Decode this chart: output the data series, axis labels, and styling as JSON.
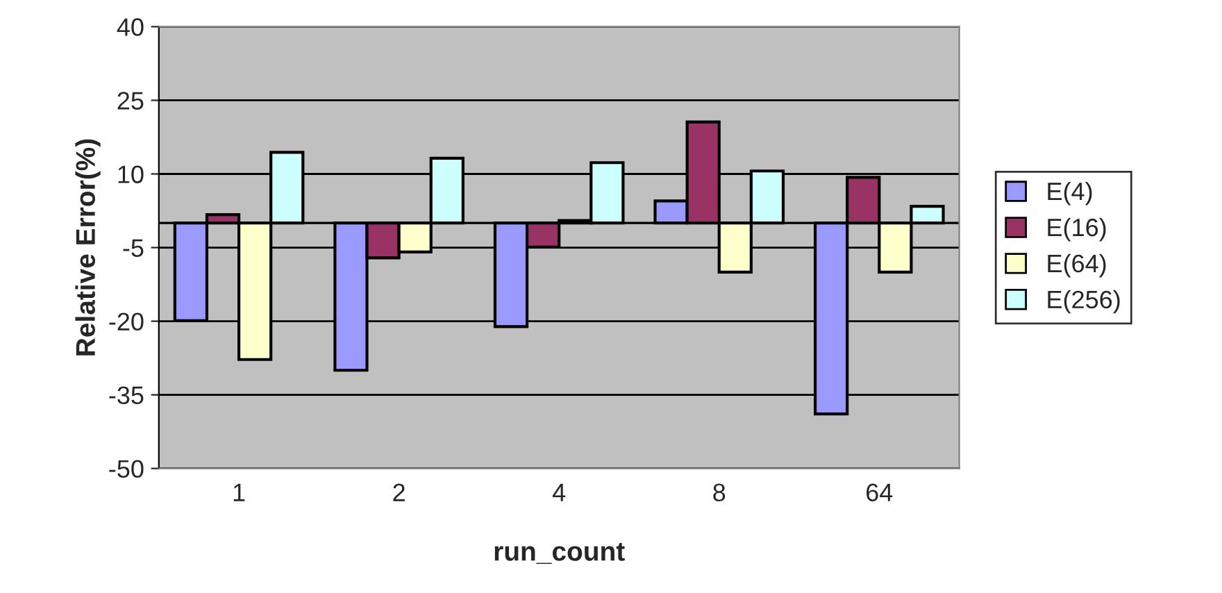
{
  "chart_data": {
    "type": "bar",
    "xlabel": "run_count",
    "ylabel": "Relative Error(%)",
    "categories": [
      "1",
      "2",
      "4",
      "8",
      "64"
    ],
    "series": [
      {
        "name": "E(4)",
        "color": "#9999ff",
        "values": [
          -19.9,
          -30,
          -21.1,
          4.5,
          -38.9
        ]
      },
      {
        "name": "E(16)",
        "color": "#993366",
        "values": [
          1.7,
          -7.1,
          -4.9,
          20.6,
          9.3
        ]
      },
      {
        "name": "E(64)",
        "color": "#ffffcc",
        "values": [
          -27.8,
          -5.9,
          0.5,
          -10,
          -10
        ]
      },
      {
        "name": "E(256)",
        "color": "#ccffff",
        "values": [
          14.4,
          13.2,
          12.3,
          10.6,
          3.4
        ]
      }
    ],
    "ylim": [
      -50,
      40
    ],
    "yticks": [
      -50,
      -35,
      -20,
      -5,
      10,
      25,
      40
    ],
    "grid": "y",
    "legend": "right"
  }
}
